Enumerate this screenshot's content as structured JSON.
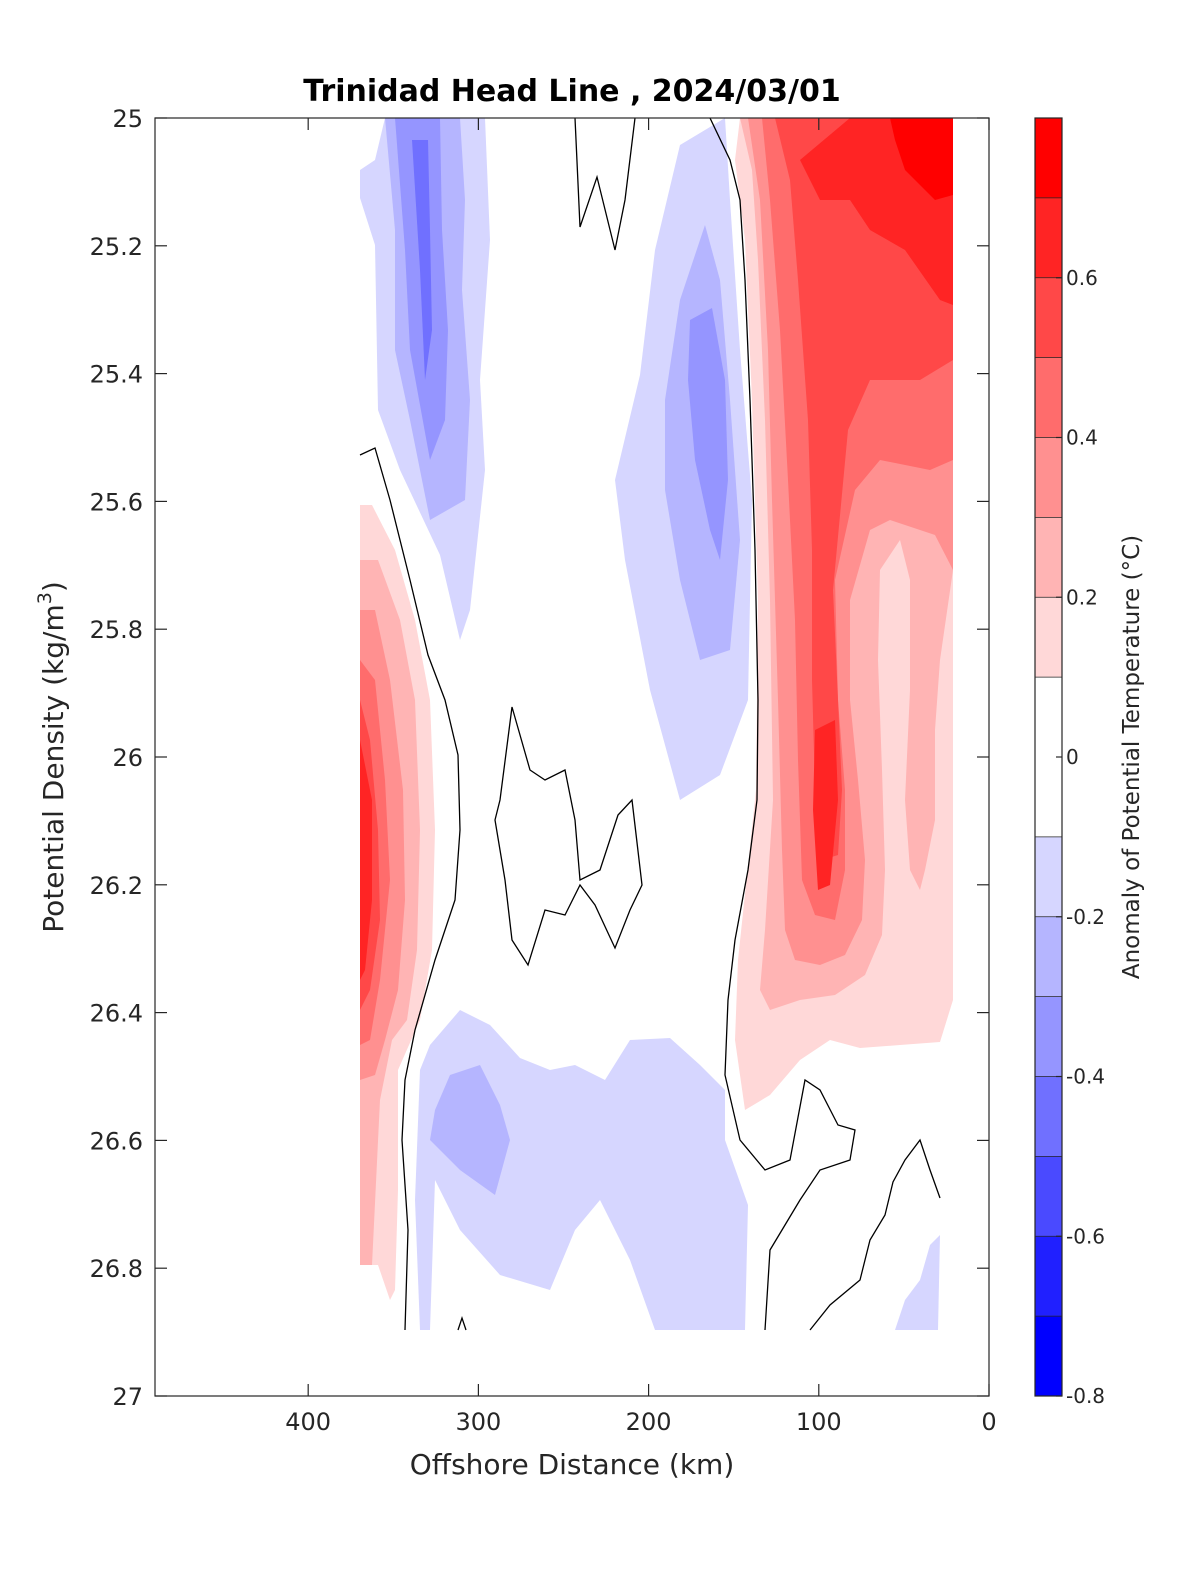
{
  "chart_data": {
    "type": "heatmap",
    "subtype": "filled-contour",
    "title": "Trinidad Head Line , 2024/03/01",
    "xlabel": "Offshore Distance (km)",
    "ylabel": "Potential Density (kg/m",
    "ylabel_sup": "3",
    "ylabel_end": ")",
    "colorbar_label": "Anomaly of Potential Temperature (°C)",
    "xlim": [
      490,
      0
    ],
    "ylim": [
      25,
      27
    ],
    "y_reversed": true,
    "x_reversed": true,
    "xticks": [
      400,
      300,
      200,
      100,
      0
    ],
    "xtick_labels": [
      "400",
      "300",
      "200",
      "100",
      "0"
    ],
    "yticks": [
      25,
      25.2,
      25.4,
      25.6,
      25.8,
      26,
      26.2,
      26.4,
      26.6,
      26.8,
      27
    ],
    "ytick_labels": [
      "25",
      "25.2",
      "25.4",
      "25.6",
      "25.8",
      "26",
      "26.2",
      "26.4",
      "26.6",
      "26.8",
      "27"
    ],
    "colorbar": {
      "range": [
        -0.8,
        0.8
      ],
      "levels": [
        -0.8,
        -0.7,
        -0.6,
        -0.5,
        -0.4,
        -0.3,
        -0.2,
        -0.1,
        0.1,
        0.2,
        0.3,
        0.4,
        0.5,
        0.6,
        0.7,
        0.8
      ],
      "colors": [
        "#0000ff",
        "#2020ff",
        "#4a4aff",
        "#7070ff",
        "#9595ff",
        "#b5b5ff",
        "#d6d6ff",
        "#ffffff",
        "#ffd8d8",
        "#ffb4b4",
        "#ff9090",
        "#ff6c6c",
        "#ff4848",
        "#ff2424",
        "#ff0000"
      ],
      "ticks": [
        -0.8,
        -0.6,
        -0.4,
        -0.2,
        0,
        0.2,
        0.4,
        0.6
      ],
      "tick_labels": [
        "-0.8",
        "-0.6",
        "-0.4",
        "-0.2",
        "0",
        "0.2",
        "0.4",
        "0.6"
      ]
    },
    "data_extent": {
      "x": [
        370,
        20
      ],
      "y": [
        25,
        26.9
      ]
    },
    "anomaly_features": [
      {
        "sign": "negative",
        "peak": -0.5,
        "x": [
          375,
          290
        ],
        "y": [
          25.0,
          25.85
        ],
        "peak_at": {
          "x": 330,
          "y": 25.3
        }
      },
      {
        "sign": "negative",
        "peak": -0.4,
        "x": [
          225,
          140
        ],
        "y": [
          25.0,
          26.07
        ],
        "peak_at": {
          "x": 165,
          "y": 25.5
        }
      },
      {
        "sign": "negative",
        "peak": -0.3,
        "x": [
          340,
          145
        ],
        "y": [
          26.39,
          26.9
        ],
        "peak_at": {
          "x": 310,
          "y": 26.6
        }
      },
      {
        "sign": "positive",
        "peak": 0.6,
        "x": [
          370,
          325
        ],
        "y": [
          25.6,
          26.9
        ],
        "peak_at": {
          "x": 365,
          "y": 26.2
        }
      },
      {
        "sign": "positive",
        "peak": 0.8,
        "x": [
          150,
          20
        ],
        "y": [
          25.0,
          26.57
        ],
        "peak_at": {
          "x": 35,
          "y": 25.05
        }
      },
      {
        "sign": "positive",
        "peak": 0.6,
        "x": [
          110,
          80
        ],
        "y": [
          25.95,
          26.3
        ],
        "peak_at": {
          "x": 95,
          "y": 26.1
        }
      }
    ]
  }
}
